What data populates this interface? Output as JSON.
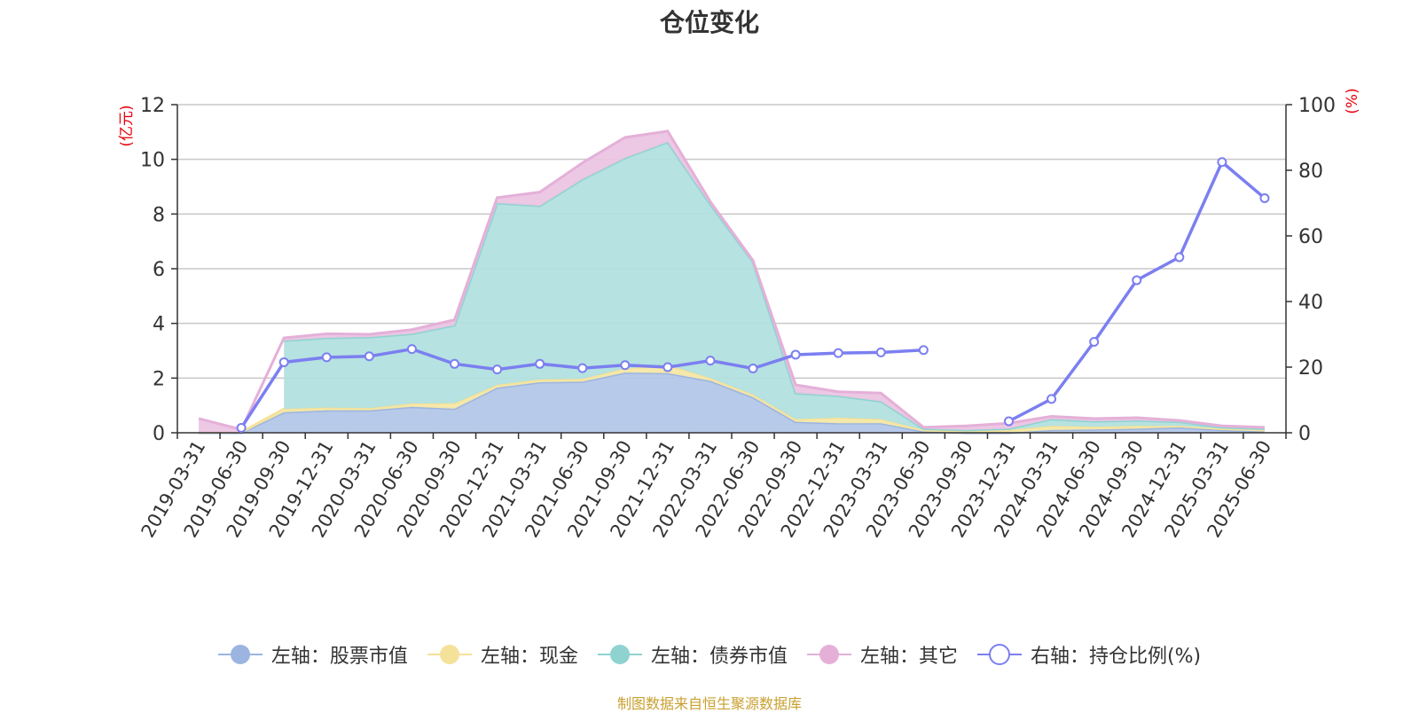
{
  "title": "仓位变化",
  "source_note": "制图数据来自恒生聚源数据库",
  "chart_data": {
    "type": "area",
    "title": "仓位变化",
    "categories": [
      "2019-03-31",
      "2019-06-30",
      "2019-09-30",
      "2019-12-31",
      "2020-03-31",
      "2020-06-30",
      "2020-09-30",
      "2020-12-31",
      "2021-03-31",
      "2021-06-30",
      "2021-09-30",
      "2021-12-31",
      "2022-03-31",
      "2022-06-30",
      "2022-09-30",
      "2022-12-31",
      "2023-03-31",
      "2023-06-30",
      "2023-09-30",
      "2023-12-31",
      "2024-03-31",
      "2024-06-30",
      "2024-09-30",
      "2024-12-31",
      "2025-03-31",
      "2025-06-30"
    ],
    "y_left": {
      "label": "(亿元)",
      "min": 0,
      "max": 12,
      "ticks": [
        0,
        2,
        4,
        6,
        8,
        10,
        12
      ]
    },
    "y_right": {
      "label": "(%)",
      "min": 0,
      "max": 100,
      "ticks": [
        0,
        20,
        40,
        60,
        80,
        100
      ]
    },
    "stacked_series": [
      {
        "name": "左轴：股票市值",
        "color": "#9bb5e0",
        "fill": "#b4c7e8",
        "values": [
          0,
          0,
          0.75,
          0.82,
          0.82,
          0.95,
          0.88,
          1.65,
          1.85,
          1.87,
          2.2,
          2.18,
          1.9,
          1.3,
          0.4,
          0.35,
          0.35,
          0.05,
          0,
          0,
          0.1,
          0.12,
          0.15,
          0.2,
          0.1,
          0.05
        ]
      },
      {
        "name": "左轴：现金",
        "color": "#f5e29a",
        "fill": "#f7e8a6",
        "values": [
          0.02,
          0.02,
          0.12,
          0.1,
          0.08,
          0.12,
          0.2,
          0.1,
          0.1,
          0.1,
          0.15,
          0.3,
          0.1,
          0.1,
          0.1,
          0.2,
          0.15,
          0.05,
          0.05,
          0.1,
          0.15,
          0.1,
          0.1,
          0.05,
          0.05,
          0.05
        ]
      },
      {
        "name": "左轴：债券市值",
        "color": "#8fd3d0",
        "fill": "#b2e0df",
        "values": [
          null,
          null,
          2.5,
          2.55,
          2.6,
          2.55,
          2.85,
          6.65,
          6.35,
          7.3,
          7.7,
          8.15,
          6.35,
          4.85,
          0.95,
          0.8,
          0.65,
          0.05,
          0.05,
          0.05,
          0.25,
          0.2,
          0.2,
          0.15,
          0.05,
          0.05
        ]
      },
      {
        "name": "左轴：其它",
        "color": "#e4b0d8",
        "fill": "#ecc5e4",
        "values": [
          0.5,
          0.1,
          0.1,
          0.15,
          0.1,
          0.15,
          0.2,
          0.2,
          0.5,
          0.6,
          0.75,
          0.4,
          0.1,
          0.05,
          0.3,
          0.15,
          0.3,
          0.05,
          0.15,
          0.2,
          0.1,
          0.1,
          0.1,
          0.05,
          0.05,
          0.05
        ]
      }
    ],
    "line_series": {
      "name": "右轴：持仓比例(%)",
      "color": "#7b7ff0",
      "axis": "right",
      "values": [
        null,
        1.5,
        21.5,
        23,
        23.3,
        25.5,
        21,
        19.3,
        21,
        19.7,
        20.6,
        20,
        22,
        19.6,
        23.8,
        24.3,
        24.5,
        25.2,
        null,
        3.5,
        10.3,
        27.7,
        46.5,
        53.5,
        82.5,
        71.5
      ]
    },
    "grid": true,
    "legend_position": "bottom"
  }
}
